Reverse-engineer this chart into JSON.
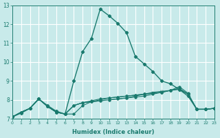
{
  "title": "",
  "xlabel": "Humidex (Indice chaleur)",
  "ylabel": "",
  "xlim": [
    0,
    23
  ],
  "ylim": [
    7,
    13
  ],
  "yticks": [
    7,
    8,
    9,
    10,
    11,
    12,
    13
  ],
  "xticks": [
    0,
    1,
    2,
    3,
    4,
    5,
    6,
    7,
    8,
    9,
    10,
    11,
    12,
    13,
    14,
    15,
    16,
    17,
    18,
    19,
    20,
    21,
    22,
    23
  ],
  "bg_color": "#c8eaea",
  "grid_color": "#ffffff",
  "line_color": "#1a7a6e",
  "lines": [
    {
      "x": [
        0,
        1,
        2,
        3,
        4,
        5,
        6,
        7,
        8,
        9,
        10,
        11,
        12,
        13,
        14,
        15,
        16,
        17,
        18,
        19,
        20,
        21,
        22,
        23
      ],
      "y": [
        7.1,
        7.3,
        7.55,
        8.05,
        7.7,
        7.4,
        7.25,
        9.0,
        10.55,
        11.25,
        12.8,
        12.45,
        12.05,
        11.55,
        10.3,
        9.9,
        9.5,
        9.0,
        8.85,
        8.55,
        8.2,
        7.5,
        7.5,
        7.55
      ],
      "lw": 1.0,
      "ms": 2.2
    },
    {
      "x": [
        0,
        1,
        2,
        3,
        4,
        5,
        6,
        7,
        8,
        9,
        10,
        11,
        12,
        13,
        14,
        15,
        16,
        17,
        18,
        19,
        20,
        21,
        22,
        23
      ],
      "y": [
        7.1,
        7.35,
        7.55,
        8.05,
        7.65,
        7.35,
        7.25,
        7.25,
        7.7,
        7.9,
        8.0,
        8.1,
        8.15,
        8.2,
        8.25,
        8.3,
        8.35,
        8.4,
        8.5,
        8.6,
        8.3,
        7.5,
        7.5,
        7.55
      ],
      "lw": 0.8,
      "ms": 1.8
    },
    {
      "x": [
        0,
        1,
        2,
        3,
        4,
        5,
        6,
        7,
        8,
        9,
        10,
        11,
        12,
        13,
        14,
        15,
        16,
        17,
        18,
        19,
        20,
        21,
        22,
        23
      ],
      "y": [
        7.1,
        7.35,
        7.55,
        8.05,
        7.65,
        7.35,
        7.25,
        7.7,
        7.85,
        7.95,
        8.05,
        8.1,
        8.15,
        8.2,
        8.25,
        8.3,
        8.35,
        8.4,
        8.5,
        8.7,
        8.35,
        7.5,
        7.5,
        7.55
      ],
      "lw": 0.8,
      "ms": 1.8
    },
    {
      "x": [
        0,
        1,
        2,
        3,
        4,
        5,
        6,
        7,
        8,
        9,
        10,
        11,
        12,
        13,
        14,
        15,
        16,
        17,
        18,
        19,
        20,
        21,
        22,
        23
      ],
      "y": [
        7.1,
        7.35,
        7.55,
        8.05,
        7.65,
        7.35,
        7.25,
        7.7,
        7.85,
        7.9,
        7.95,
        8.0,
        8.05,
        8.1,
        8.15,
        8.2,
        8.3,
        8.4,
        8.5,
        8.6,
        8.3,
        7.5,
        7.5,
        7.55
      ],
      "lw": 0.8,
      "ms": 1.8
    },
    {
      "x": [
        0,
        1,
        2,
        3,
        4,
        5,
        6,
        7,
        8,
        9,
        10,
        11,
        12,
        13,
        14,
        15,
        16,
        17,
        18,
        19,
        20,
        21,
        22,
        23
      ],
      "y": [
        7.1,
        7.35,
        7.55,
        8.05,
        7.65,
        7.35,
        7.25,
        7.7,
        7.85,
        7.9,
        7.95,
        8.0,
        8.05,
        8.1,
        8.2,
        8.3,
        8.4,
        8.45,
        8.5,
        8.55,
        8.3,
        7.5,
        7.5,
        7.55
      ],
      "lw": 0.8,
      "ms": 1.8
    }
  ]
}
